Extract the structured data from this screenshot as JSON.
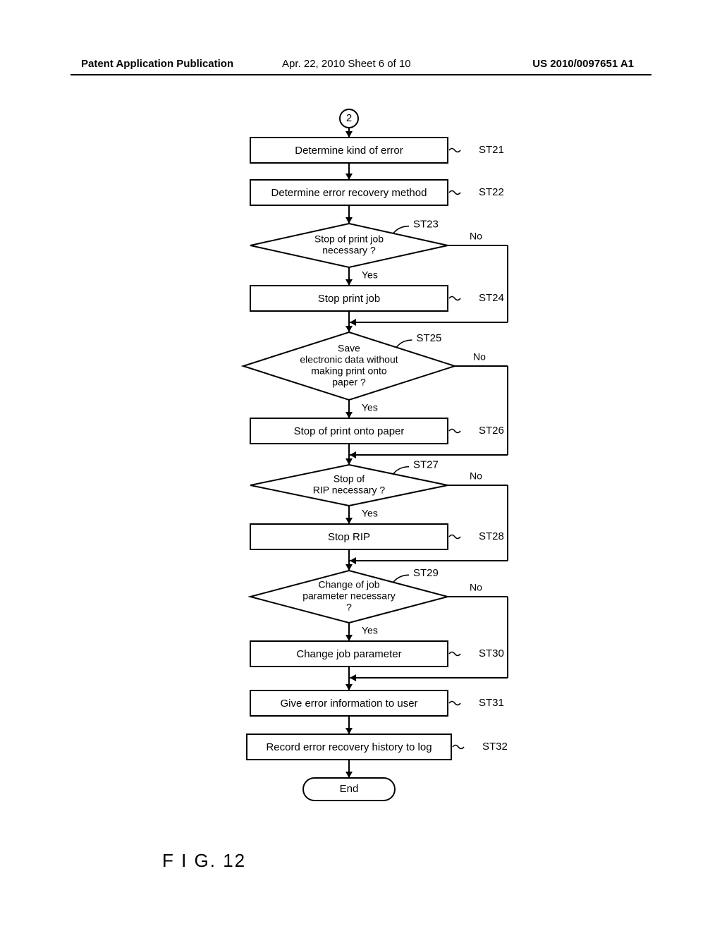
{
  "header": {
    "left": "Patent Application Publication",
    "center": "Apr. 22, 2010  Sheet 6 of 10",
    "right": "US 2010/0097651 A1"
  },
  "figLabel": "F I G. 12",
  "flow": {
    "start": "2",
    "end": "End",
    "yes": "Yes",
    "no": "No",
    "nodes": {
      "st21": {
        "label": "ST21",
        "text": "Determine kind of error",
        "type": "box"
      },
      "st22": {
        "label": "ST22",
        "text": "Determine error recovery method",
        "type": "box"
      },
      "st23": {
        "label": "ST23",
        "lines": [
          "Stop of print job",
          "necessary ?"
        ],
        "type": "diamond"
      },
      "st24": {
        "label": "ST24",
        "text": "Stop print job",
        "type": "box"
      },
      "st25": {
        "label": "ST25",
        "lines": [
          "Save",
          "electronic data without",
          "making print onto",
          "paper ?"
        ],
        "type": "diamond"
      },
      "st26": {
        "label": "ST26",
        "text": "Stop of print onto paper",
        "type": "box"
      },
      "st27": {
        "label": "ST27",
        "lines": [
          "Stop of",
          "RIP necessary ?"
        ],
        "type": "diamond"
      },
      "st28": {
        "label": "ST28",
        "text": "Stop RIP",
        "type": "box"
      },
      "st29": {
        "label": "ST29",
        "lines": [
          "Change of job",
          "parameter necessary",
          "?"
        ],
        "type": "diamond"
      },
      "st30": {
        "label": "ST30",
        "text": "Change job parameter",
        "type": "box"
      },
      "st31": {
        "label": "ST31",
        "text": "Give error information to user",
        "type": "box"
      },
      "st32": {
        "label": "ST32",
        "text": "Record error recovery history to log",
        "type": "box"
      }
    },
    "style": {
      "stroke": "#000000",
      "strokeWidth": 2,
      "boxFontSize": 15,
      "diamondFontSize": 14,
      "labelFontSize": 15,
      "ynFontSize": 14
    }
  }
}
